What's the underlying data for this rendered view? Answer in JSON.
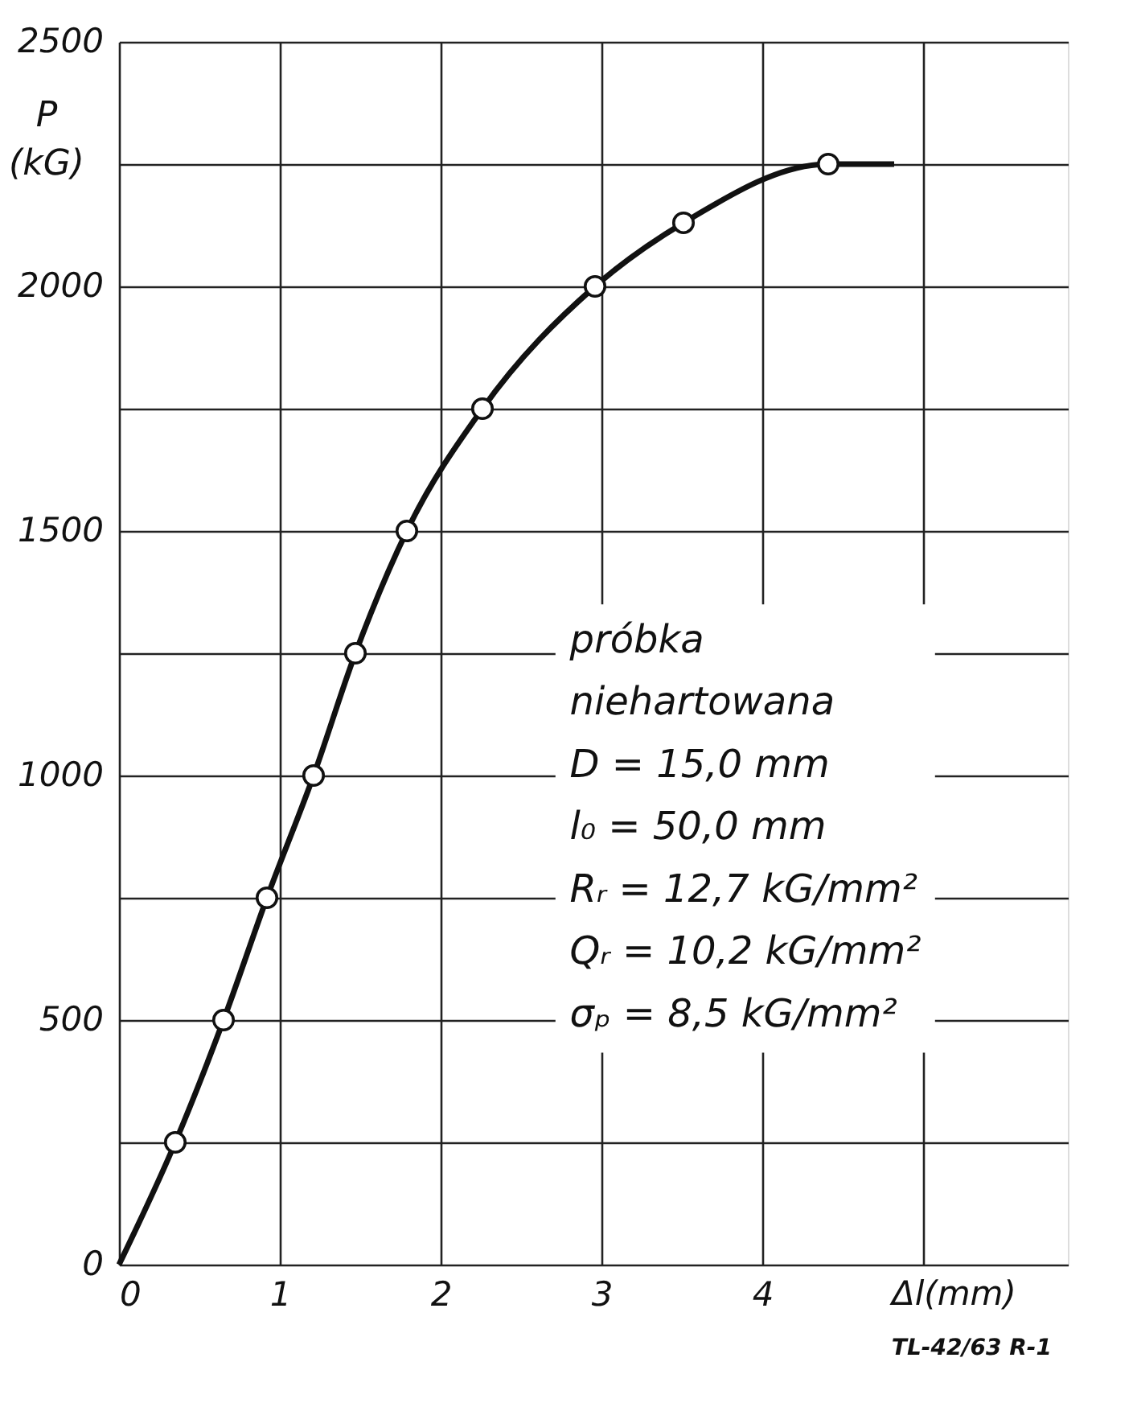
{
  "chart_data": {
    "type": "line",
    "x": [
      0,
      0.35,
      0.65,
      0.92,
      1.21,
      1.47,
      1.79,
      2.26,
      2.96,
      3.51,
      4.41,
      4.82
    ],
    "series": [
      {
        "color": "#111111",
        "marker": "none",
        "values": [
          0,
          250,
          500,
          750,
          1000,
          1250,
          1500,
          1750,
          2000,
          2130,
          2250,
          2250
        ]
      },
      {
        "type": "scatter",
        "color": "#111111",
        "marker": "circle",
        "x": [
          0.35,
          0.65,
          0.92,
          1.21,
          1.47,
          1.79,
          2.26,
          2.96,
          3.51,
          4.41
        ],
        "values": [
          250,
          500,
          750,
          1000,
          1250,
          1500,
          1750,
          2000,
          2130,
          2250
        ]
      }
    ],
    "xlabel": "Δl(mm)",
    "ylabel": "P (kG)",
    "xlim": [
      0,
      5.9
    ],
    "xticks": [
      0,
      1,
      2,
      3,
      4,
      {
        "value": 5,
        "label": null
      }
    ],
    "ylim": [
      0,
      2500
    ],
    "yticks": [
      0,
      {
        "value": 250,
        "label": null
      },
      500,
      {
        "value": 750,
        "label": null
      },
      1000,
      {
        "value": 1250,
        "label": null
      },
      1500,
      {
        "value": 1750,
        "label": null
      },
      2000,
      {
        "value": 2250,
        "label": null
      },
      2500
    ],
    "grid": true,
    "annotations": [
      "próbka",
      "niehartowana",
      "D = 15,0 mm",
      "l₀ = 50,0 mm",
      "Rᵣ = 12,7 kG/mm²",
      "Qᵣ = 10,2 kG/mm²",
      "σₚ = 8,5 kG/mm²",
      "TL-42/63 R-1"
    ]
  }
}
